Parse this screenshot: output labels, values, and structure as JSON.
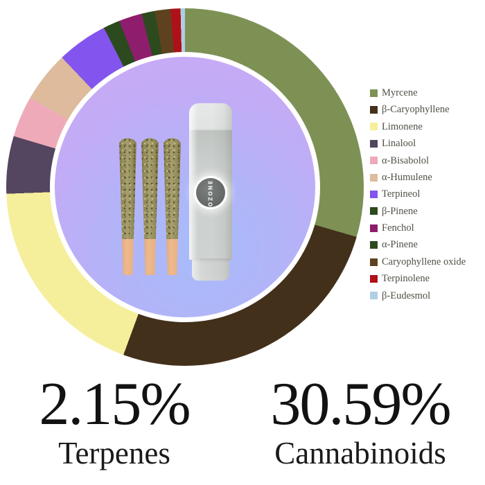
{
  "chart_data": {
    "type": "pie",
    "donut": true,
    "title": "",
    "legend_position": "right",
    "start_angle_deg": 0,
    "direction": "clockwise",
    "slices": [
      {
        "label": "Myrcene",
        "percent": 29.5,
        "color": "#7d9155"
      },
      {
        "label": "β-Caryophyllene",
        "percent": 26.1,
        "color": "#43301b"
      },
      {
        "label": "Limonene",
        "percent": 18.8,
        "color": "#f5ef9c"
      },
      {
        "label": "Linalool",
        "percent": 5.2,
        "color": "#544560"
      },
      {
        "label": "α-Bisabolol",
        "percent": 3.7,
        "color": "#efaaba"
      },
      {
        "label": "α-Humulene",
        "percent": 4.6,
        "color": "#debb9c"
      },
      {
        "label": "Terpineol",
        "percent": 4.6,
        "color": "#8355ee"
      },
      {
        "label": "β-Pinene",
        "percent": 1.5,
        "color": "#2b4a1d"
      },
      {
        "label": "Fenchol",
        "percent": 2.1,
        "color": "#8e1d6e"
      },
      {
        "label": "α-Pinene",
        "percent": 1.2,
        "color": "#2c4a1e"
      },
      {
        "label": "Caryophyllene oxide",
        "percent": 1.4,
        "color": "#5e421e"
      },
      {
        "label": "Terpinolene",
        "percent": 0.9,
        "color": "#ae1118"
      },
      {
        "label": "β-Eudesmol",
        "percent": 0.4,
        "color": "#aecfe4"
      }
    ]
  },
  "stats": {
    "terpenes": {
      "value": "2.15%",
      "label": "Terpenes"
    },
    "cannabinoids": {
      "value": "30.59%",
      "label": "Cannabinoids"
    }
  },
  "product": {
    "badge_text": "OZONE",
    "center_items": "three pre-roll joints and one OZONE tube"
  },
  "colors": {
    "background": "#ffffff",
    "hole_gradient_inner": "#a7bcfa",
    "hole_gradient_outer": "#cbaaf5",
    "text": "#121212"
  }
}
